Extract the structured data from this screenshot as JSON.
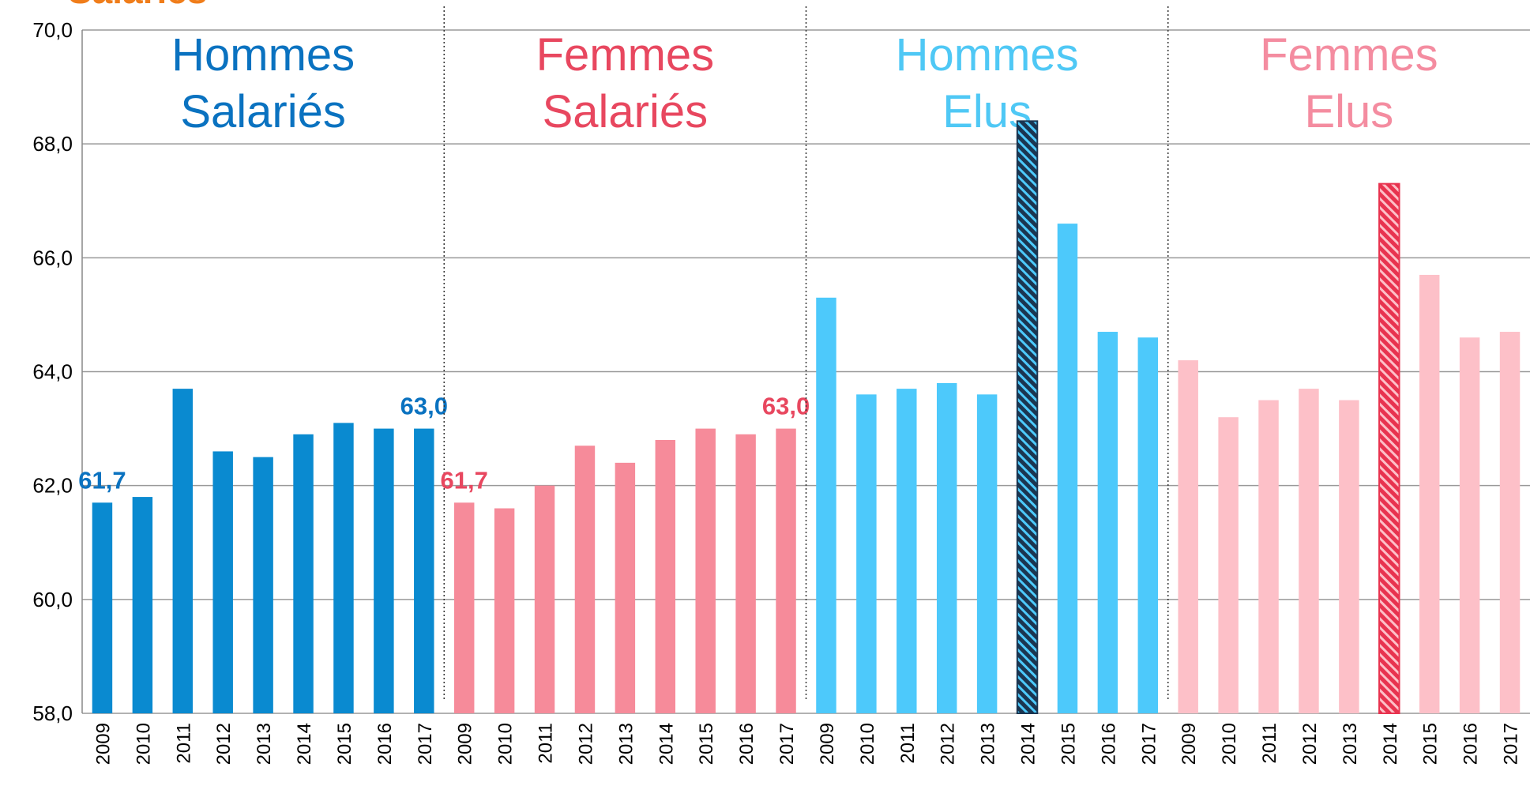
{
  "chart_data": {
    "type": "bar",
    "title": "Salariés",
    "categories": [
      "2009",
      "2010",
      "2011",
      "2012",
      "2013",
      "2014",
      "2015",
      "2016",
      "2017"
    ],
    "series": [
      {
        "name": "Hommes Salariés",
        "color": "#0a8ad0",
        "label_color": "#0a72c0",
        "values": [
          61.7,
          61.8,
          63.7,
          62.6,
          62.5,
          62.9,
          63.1,
          63.0,
          63.0
        ],
        "value_labels": [
          "61,7",
          null,
          null,
          null,
          null,
          null,
          null,
          null,
          "63,0"
        ]
      },
      {
        "name": "Femmes Salariés",
        "color": "#f68b9a",
        "label_color": "#e8475f",
        "values": [
          61.7,
          61.6,
          62.0,
          62.7,
          62.4,
          62.8,
          63.0,
          62.9,
          63.0
        ],
        "value_labels": [
          "61,7",
          null,
          null,
          null,
          null,
          null,
          null,
          null,
          "63,0"
        ]
      },
      {
        "name": "Hommes Elus",
        "color": "#4dc9fb",
        "label_color": "#4fc8f5",
        "values": [
          65.3,
          63.6,
          63.7,
          63.8,
          63.6,
          68.4,
          66.6,
          64.7,
          64.6
        ],
        "hatched": [
          5
        ],
        "hatch_colors": [
          "#1b3550",
          "#4dc9fb"
        ]
      },
      {
        "name": "Femmes Elus",
        "color": "#fdc0c8",
        "label_color": "#f48ca0",
        "values": [
          64.2,
          63.2,
          63.5,
          63.7,
          63.5,
          67.3,
          65.7,
          64.6,
          64.7
        ],
        "hatched": [
          5
        ],
        "hatch_colors": [
          "#e8334f",
          "#fdc0c8"
        ]
      }
    ],
    "ylim": [
      58,
      70
    ],
    "yticks": [
      {
        "value": 58,
        "label": "58,0"
      },
      {
        "value": 60,
        "label": "60,0"
      },
      {
        "value": 62,
        "label": "62,0"
      },
      {
        "value": 64,
        "label": "64,0"
      },
      {
        "value": 66,
        "label": "66,0"
      },
      {
        "value": 68,
        "label": "68,0"
      },
      {
        "value": 70,
        "label": "70,0"
      }
    ],
    "grid": true
  }
}
